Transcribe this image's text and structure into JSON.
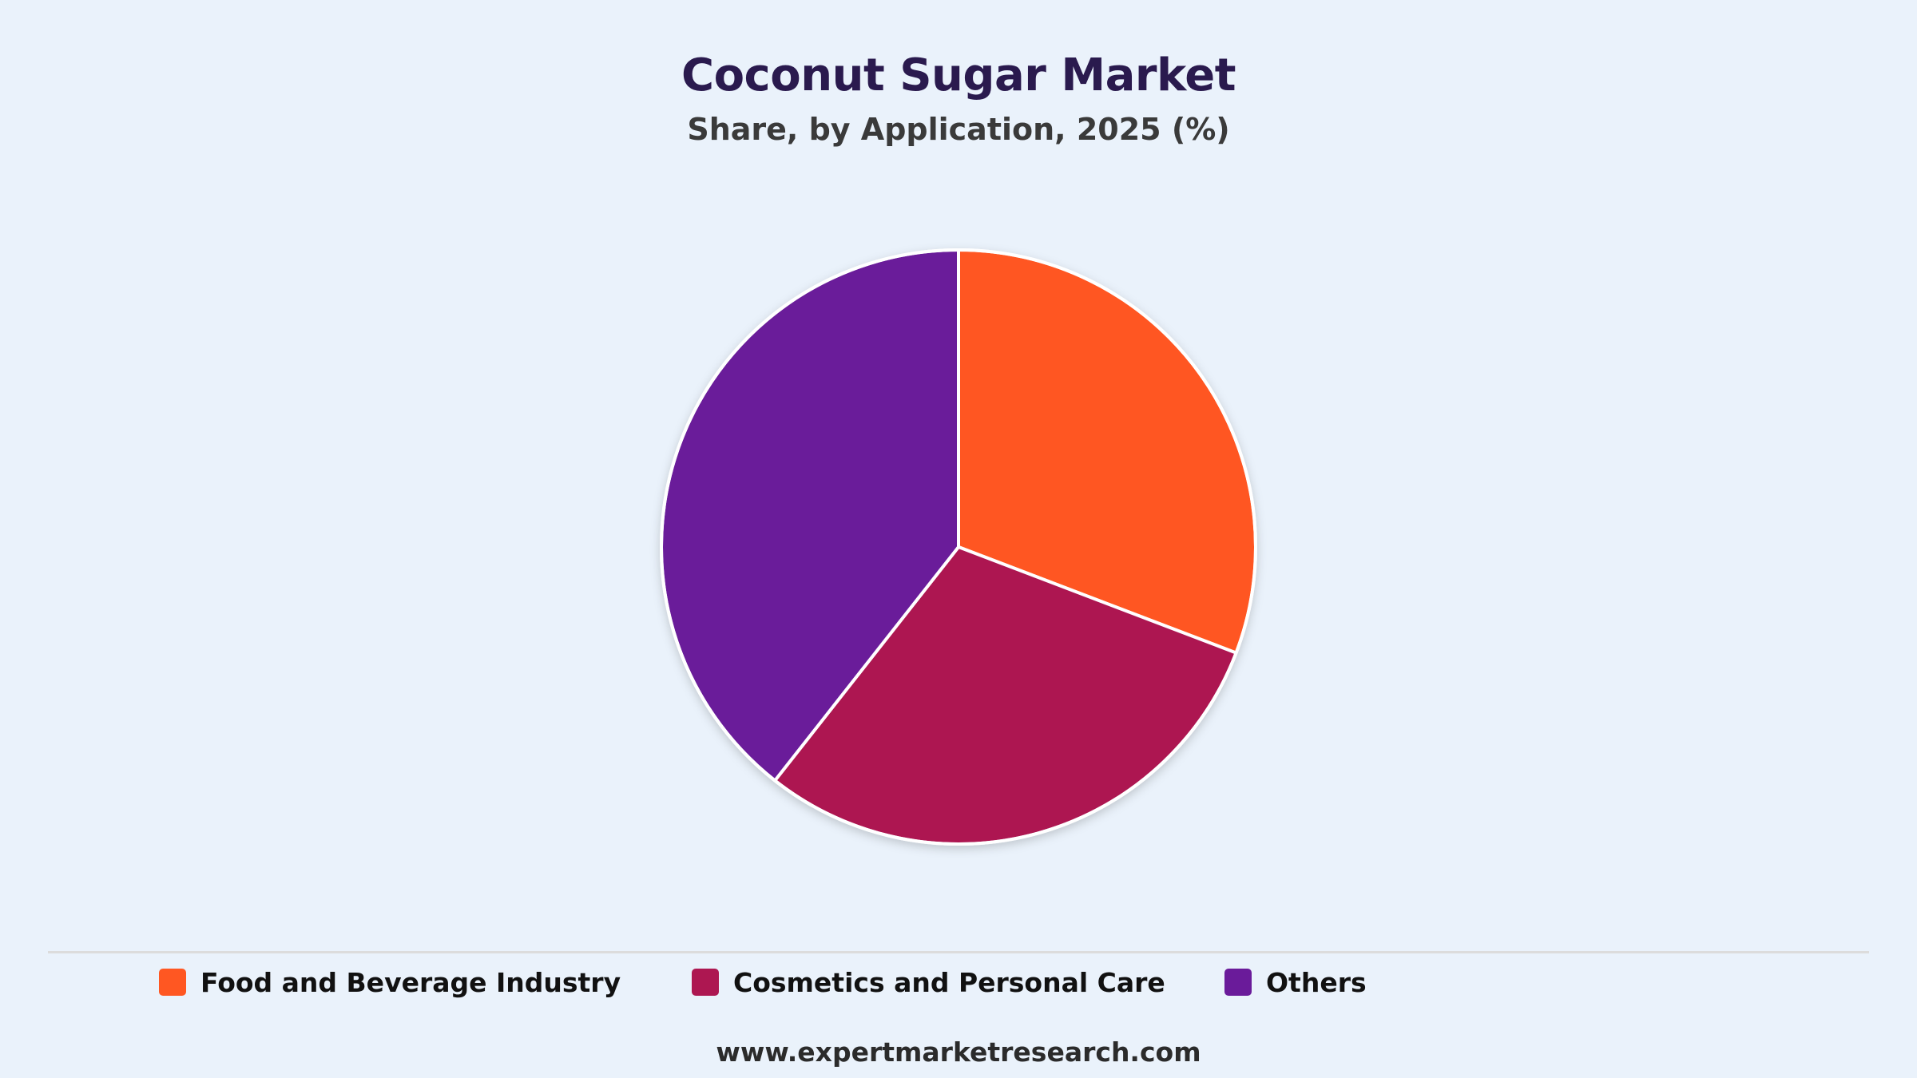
{
  "chart_data": {
    "type": "pie",
    "title": "Coconut Sugar Market",
    "subtitle": "Share, by Application, 2025 (%)",
    "categories": [
      "Food and Beverage Industry",
      "Cosmetics and Personal Care",
      "Others"
    ],
    "values": [
      30.8,
      29.8,
      39.4
    ],
    "colors": [
      "#ff5722",
      "#ad1751",
      "#6a1b9a"
    ],
    "legend_position": "bottom",
    "start_angle": "12 o'clock",
    "direction": "clockwise"
  },
  "footer": {
    "url": "www.expertmarketresearch.com"
  }
}
